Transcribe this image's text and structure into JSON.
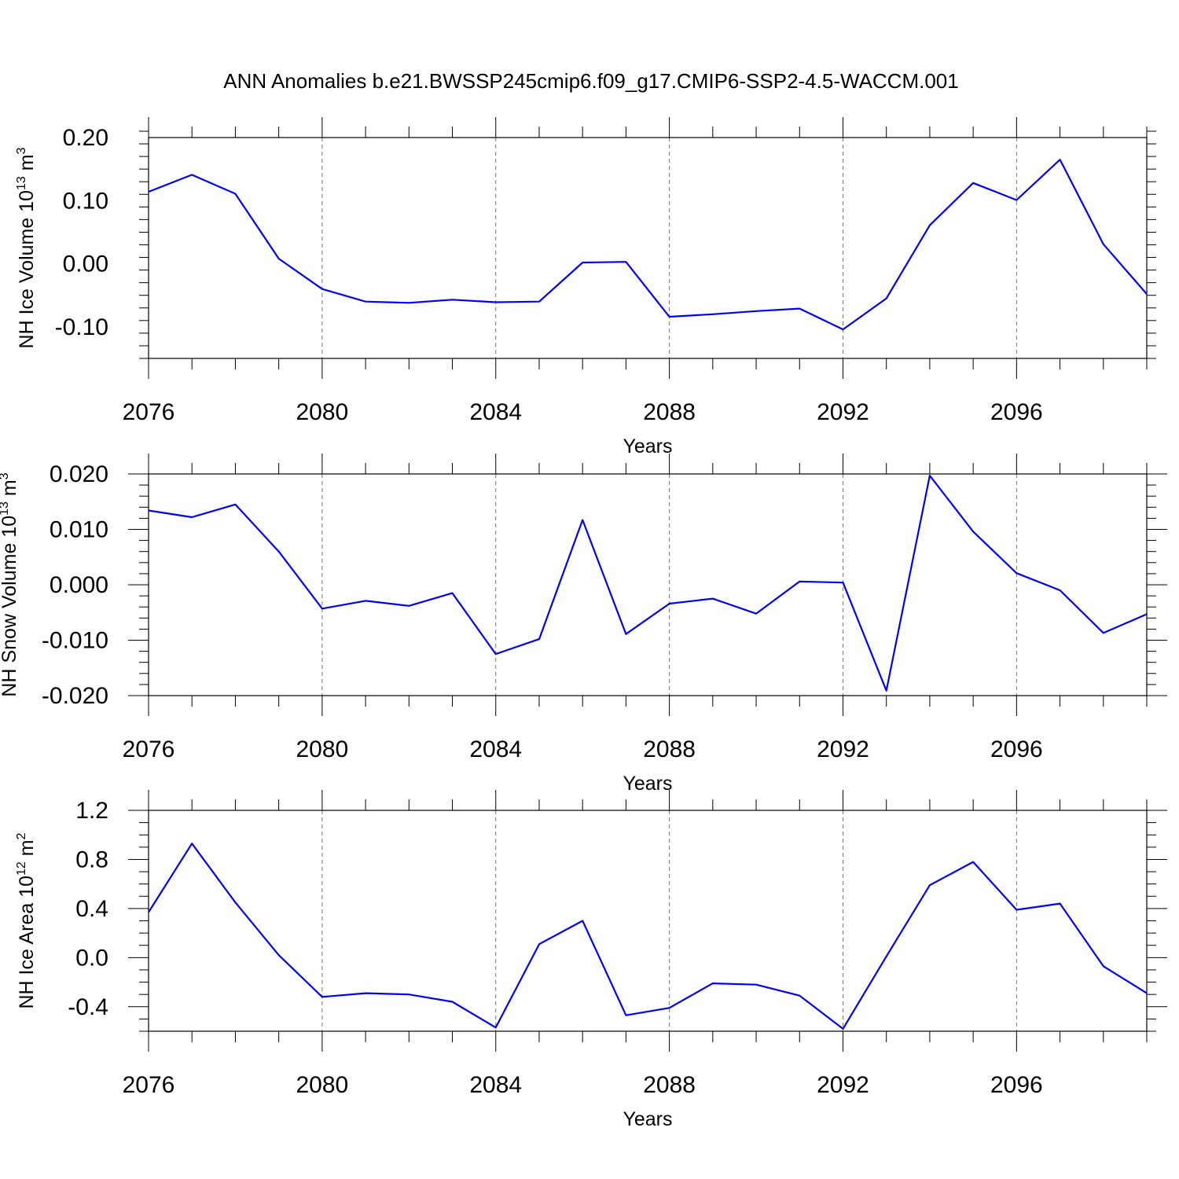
{
  "title": "ANN Anomalies b.e21.BWSSP245cmip6.f09_g17.CMIP6-SSP2-4.5-WACCM.001",
  "chart_data": [
    {
      "type": "line",
      "ylabel_main": "NH Ice Volume 10",
      "ylabel_sup": "13",
      "ylabel_unit": " m",
      "ylabel_unit_sup": "3",
      "xlabel": "Years",
      "xlim": [
        2076,
        2099
      ],
      "ylim": [
        -0.15,
        0.2
      ],
      "xticks": [
        2076,
        2080,
        2084,
        2088,
        2092,
        2096
      ],
      "xtick_labels": [
        "2076",
        "2080",
        "2084",
        "2088",
        "2092",
        "2096"
      ],
      "yticks": [
        0.2,
        0.1,
        0.0,
        -0.1
      ],
      "ytick_labels": [
        "0.20",
        "0.10",
        "0.00",
        "-0.10"
      ],
      "yminor_step": 0.02,
      "grid": "vertical dashed at major x ticks",
      "color": "#0000ff",
      "x": [
        2076,
        2077,
        2078,
        2079,
        2080,
        2081,
        2082,
        2083,
        2084,
        2085,
        2086,
        2087,
        2088,
        2089,
        2090,
        2091,
        2092,
        2093,
        2094,
        2095,
        2096,
        2097,
        2098,
        2099
      ],
      "y": [
        0.114,
        0.141,
        0.111,
        0.008,
        -0.04,
        -0.06,
        -0.062,
        -0.057,
        -0.061,
        -0.06,
        0.002,
        0.003,
        -0.084,
        -0.08,
        -0.075,
        -0.071,
        -0.104,
        -0.055,
        0.061,
        0.128,
        0.101,
        0.165,
        0.031,
        -0.048
      ]
    },
    {
      "type": "line",
      "ylabel_main": "NH Snow Volume 10",
      "ylabel_sup": "13",
      "ylabel_unit": " m",
      "ylabel_unit_sup": "3",
      "xlabel": "Years",
      "xlim": [
        2076,
        2099
      ],
      "ylim": [
        -0.02,
        0.02
      ],
      "xticks": [
        2076,
        2080,
        2084,
        2088,
        2092,
        2096
      ],
      "xtick_labels": [
        "2076",
        "2080",
        "2084",
        "2088",
        "2092",
        "2096"
      ],
      "yticks": [
        0.02,
        0.01,
        0.0,
        -0.01,
        -0.02
      ],
      "ytick_labels": [
        "0.020",
        "0.010",
        "0.000",
        "-0.010",
        "-0.020"
      ],
      "yminor_step": 0.002,
      "grid": "vertical dashed at major x ticks",
      "color": "#0000ff",
      "x": [
        2076,
        2077,
        2078,
        2079,
        2080,
        2081,
        2082,
        2083,
        2084,
        2085,
        2086,
        2087,
        2088,
        2089,
        2090,
        2091,
        2092,
        2093,
        2094,
        2095,
        2096,
        2097,
        2098,
        2099
      ],
      "y": [
        0.0134,
        0.0122,
        0.0145,
        0.006,
        -0.0043,
        -0.0029,
        -0.0038,
        -0.0015,
        -0.0125,
        -0.0098,
        0.0117,
        -0.0089,
        -0.0034,
        -0.0025,
        -0.0052,
        0.0006,
        0.0004,
        -0.0191,
        0.0197,
        0.0096,
        0.0021,
        -0.001,
        -0.0087,
        -0.0053
      ]
    },
    {
      "type": "line",
      "ylabel_main": "NH Ice Area 10",
      "ylabel_sup": "12",
      "ylabel_unit": " m",
      "ylabel_unit_sup": "2",
      "xlabel": "Years",
      "xlim": [
        2076,
        2099
      ],
      "ylim": [
        -0.6,
        1.2
      ],
      "xticks": [
        2076,
        2080,
        2084,
        2088,
        2092,
        2096
      ],
      "xtick_labels": [
        "2076",
        "2080",
        "2084",
        "2088",
        "2092",
        "2096"
      ],
      "yticks": [
        1.2,
        0.8,
        0.4,
        0.0,
        -0.4
      ],
      "ytick_labels": [
        "1.2",
        "0.8",
        "0.4",
        "0.0",
        "-0.4"
      ],
      "yminor_step": 0.1,
      "grid": "vertical dashed at major x ticks",
      "color": "#0000ff",
      "x": [
        2076,
        2077,
        2078,
        2079,
        2080,
        2081,
        2082,
        2083,
        2084,
        2085,
        2086,
        2087,
        2088,
        2089,
        2090,
        2091,
        2092,
        2093,
        2094,
        2095,
        2096,
        2097,
        2098,
        2099
      ],
      "y": [
        0.37,
        0.93,
        0.45,
        0.02,
        -0.32,
        -0.29,
        -0.3,
        -0.36,
        -0.57,
        0.11,
        0.3,
        -0.47,
        -0.41,
        -0.21,
        -0.22,
        -0.31,
        -0.58,
        0.01,
        0.59,
        0.78,
        0.39,
        0.44,
        -0.07,
        -0.29
      ]
    }
  ]
}
